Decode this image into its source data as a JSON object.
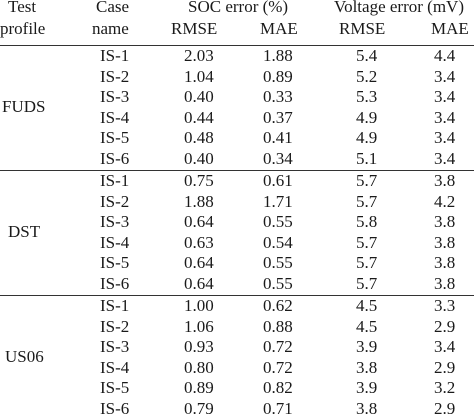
{
  "header": {
    "test_profile_line1": "Test",
    "test_profile_line2": "profile",
    "case_name_line1": "Case",
    "case_name_line2": "name",
    "soc_error": "SOC error (%)",
    "voltage_error": "Voltage error (mV)",
    "rmse": "RMSE",
    "mae": "MAE"
  },
  "groups": [
    {
      "profile": "FUDS",
      "rows": [
        {
          "case": "IS-1",
          "soc_rmse": "2.03",
          "soc_mae": "1.88",
          "v_rmse": "5.4",
          "v_mae": "4.4"
        },
        {
          "case": "IS-2",
          "soc_rmse": "1.04",
          "soc_mae": "0.89",
          "v_rmse": "5.2",
          "v_mae": "3.4"
        },
        {
          "case": "IS-3",
          "soc_rmse": "0.40",
          "soc_mae": "0.33",
          "v_rmse": "5.3",
          "v_mae": "3.4"
        },
        {
          "case": "IS-4",
          "soc_rmse": "0.44",
          "soc_mae": "0.37",
          "v_rmse": "4.9",
          "v_mae": "3.4"
        },
        {
          "case": "IS-5",
          "soc_rmse": "0.48",
          "soc_mae": "0.41",
          "v_rmse": "4.9",
          "v_mae": "3.4"
        },
        {
          "case": "IS-6",
          "soc_rmse": "0.40",
          "soc_mae": "0.34",
          "v_rmse": "5.1",
          "v_mae": "3.4"
        }
      ]
    },
    {
      "profile": "DST",
      "rows": [
        {
          "case": "IS-1",
          "soc_rmse": "0.75",
          "soc_mae": "0.61",
          "v_rmse": "5.7",
          "v_mae": "3.8"
        },
        {
          "case": "IS-2",
          "soc_rmse": "1.88",
          "soc_mae": "1.71",
          "v_rmse": "5.7",
          "v_mae": "4.2"
        },
        {
          "case": "IS-3",
          "soc_rmse": "0.64",
          "soc_mae": "0.55",
          "v_rmse": "5.8",
          "v_mae": "3.8"
        },
        {
          "case": "IS-4",
          "soc_rmse": "0.63",
          "soc_mae": "0.54",
          "v_rmse": "5.7",
          "v_mae": "3.8"
        },
        {
          "case": "IS-5",
          "soc_rmse": "0.64",
          "soc_mae": "0.55",
          "v_rmse": "5.7",
          "v_mae": "3.8"
        },
        {
          "case": "IS-6",
          "soc_rmse": "0.64",
          "soc_mae": "0.55",
          "v_rmse": "5.7",
          "v_mae": "3.8"
        }
      ]
    },
    {
      "profile": "US06",
      "rows": [
        {
          "case": "IS-1",
          "soc_rmse": "1.00",
          "soc_mae": "0.62",
          "v_rmse": "4.5",
          "v_mae": "3.3"
        },
        {
          "case": "IS-2",
          "soc_rmse": "1.06",
          "soc_mae": "0.88",
          "v_rmse": "4.5",
          "v_mae": "2.9"
        },
        {
          "case": "IS-3",
          "soc_rmse": "0.93",
          "soc_mae": "0.72",
          "v_rmse": "3.9",
          "v_mae": "3.4"
        },
        {
          "case": "IS-4",
          "soc_rmse": "0.80",
          "soc_mae": "0.72",
          "v_rmse": "3.8",
          "v_mae": "2.9"
        },
        {
          "case": "IS-5",
          "soc_rmse": "0.89",
          "soc_mae": "0.82",
          "v_rmse": "3.9",
          "v_mae": "3.2"
        },
        {
          "case": "IS-6",
          "soc_rmse": "0.79",
          "soc_mae": "0.71",
          "v_rmse": "3.8",
          "v_mae": "2.9"
        }
      ]
    }
  ]
}
